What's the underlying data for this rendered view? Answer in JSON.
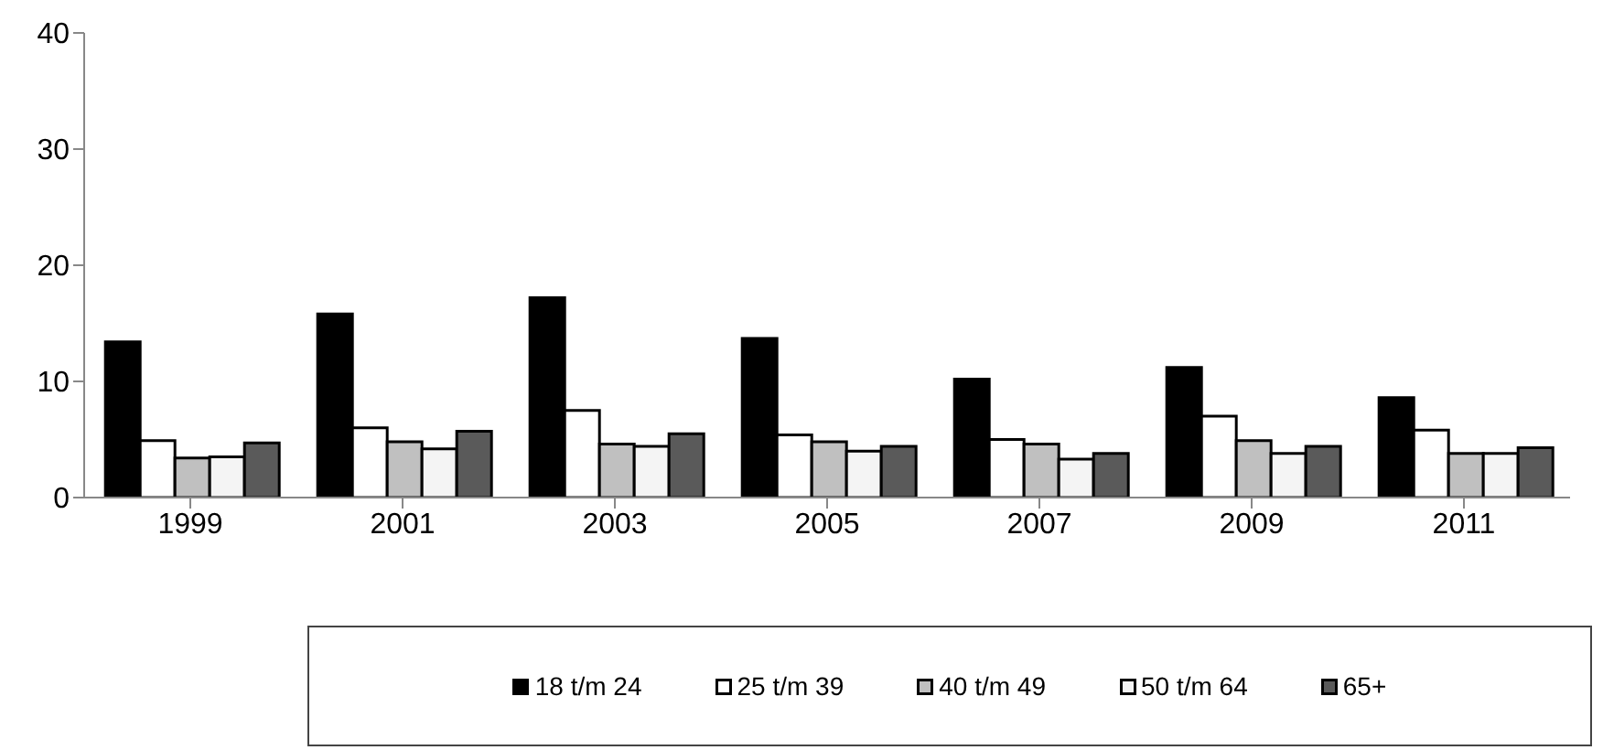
{
  "chart_data": {
    "type": "bar",
    "categories": [
      "1999",
      "2001",
      "2003",
      "2005",
      "2007",
      "2009",
      "2011"
    ],
    "series": [
      {
        "name": "18 t/m 24",
        "color": "#000000",
        "values": [
          13.4,
          15.8,
          17.2,
          13.7,
          10.2,
          11.2,
          8.6
        ]
      },
      {
        "name": "25 t/m 39",
        "color": "#ffffff",
        "values": [
          4.9,
          6.0,
          7.5,
          5.4,
          5.0,
          7.0,
          5.8
        ]
      },
      {
        "name": "40 t/m 49",
        "color": "#c0c0c0",
        "values": [
          3.4,
          4.8,
          4.6,
          4.8,
          4.6,
          4.9,
          3.8
        ]
      },
      {
        "name": "50 t/m 64",
        "color": "#f4f4f4",
        "values": [
          3.5,
          4.2,
          4.4,
          4.0,
          3.3,
          3.8,
          3.8
        ]
      },
      {
        "name": "65+",
        "color": "#5a5a5a",
        "values": [
          4.7,
          5.7,
          5.5,
          4.4,
          3.8,
          4.4,
          4.3
        ]
      }
    ],
    "ylim": [
      0,
      40
    ],
    "yticks": [
      0,
      10,
      20,
      30,
      40
    ],
    "grid": false,
    "legend": "bottom"
  }
}
